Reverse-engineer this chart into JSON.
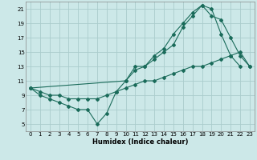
{
  "xlabel": "Humidex (Indice chaleur)",
  "background_color": "#cce8e8",
  "grid_color": "#aacccc",
  "line_color": "#1a6b5a",
  "xlim": [
    -0.5,
    23.5
  ],
  "ylim": [
    4,
    22
  ],
  "xticks": [
    0,
    1,
    2,
    3,
    4,
    5,
    6,
    7,
    8,
    9,
    10,
    11,
    12,
    13,
    14,
    15,
    16,
    17,
    18,
    19,
    20,
    21,
    22,
    23
  ],
  "yticks": [
    5,
    7,
    9,
    11,
    13,
    15,
    17,
    19,
    21
  ],
  "series1_x": [
    0,
    1,
    2,
    3,
    4,
    5,
    6,
    7,
    8,
    9,
    10,
    11,
    12,
    13,
    14,
    15,
    16,
    17,
    18,
    19,
    20,
    21,
    22
  ],
  "series1_y": [
    10,
    9,
    8.5,
    8,
    7.5,
    7,
    7,
    5,
    6.5,
    9.5,
    11,
    13,
    13,
    14.5,
    15.5,
    17.5,
    19,
    20.5,
    21.5,
    21,
    17.5,
    14.5,
    13
  ],
  "series2_x": [
    0,
    1,
    2,
    3,
    4,
    5,
    6,
    7,
    8,
    9,
    10,
    11,
    12,
    13,
    14,
    15,
    16,
    17,
    18,
    19,
    20,
    21,
    22,
    23
  ],
  "series2_y": [
    10,
    9.5,
    9,
    9,
    8.5,
    8.5,
    8.5,
    8.5,
    9,
    9.5,
    10,
    10.5,
    11,
    11,
    11.5,
    12,
    12.5,
    13,
    13,
    13.5,
    14,
    14.5,
    15,
    13
  ],
  "series3_x": [
    0,
    10,
    11,
    12,
    13,
    14,
    15,
    16,
    17,
    18,
    19,
    20,
    21,
    22,
    23
  ],
  "series3_y": [
    10,
    11,
    12.5,
    13,
    14,
    15,
    16,
    18.5,
    20,
    21.5,
    20,
    19.5,
    17,
    14.5,
    13
  ]
}
